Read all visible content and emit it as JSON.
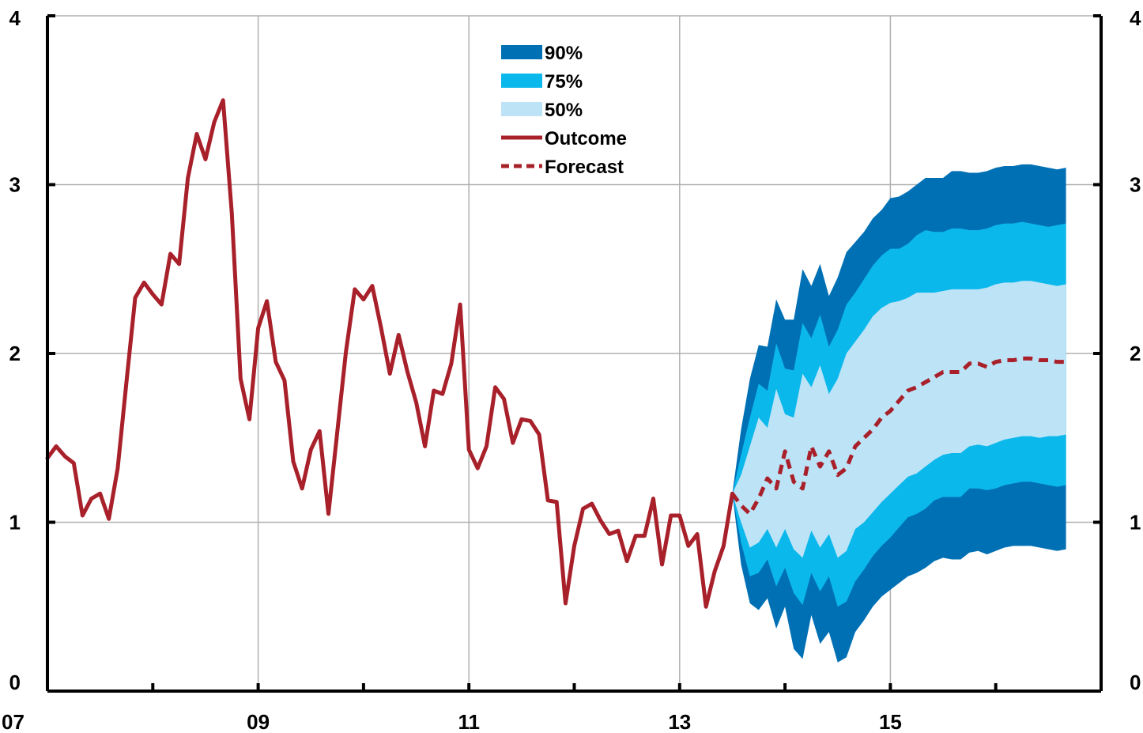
{
  "chart_data": {
    "type": "line",
    "title": "",
    "xlabel": "",
    "ylabel": "",
    "x_tick_labels": [
      "07",
      "09",
      "11",
      "13",
      "15"
    ],
    "x_tick_values": [
      2007,
      2009,
      2011,
      2013,
      2015
    ],
    "xlim": [
      2007,
      2017
    ],
    "ylim": [
      0,
      4
    ],
    "y_ticks": [
      0,
      1,
      2,
      3,
      4
    ],
    "y_tick_labels_left": [
      "0",
      "1",
      "2",
      "3",
      "4"
    ],
    "y_tick_labels_right": [
      "0",
      "1",
      "2",
      "3",
      "4"
    ],
    "grid": true,
    "legend_position": "top-center",
    "colors": {
      "band_90": "#0070b5",
      "band_75": "#0bb8ec",
      "band_50": "#bde3f7",
      "outcome": "#a8202a",
      "forecast": "#a8202a",
      "grid": "#b0b0b0"
    },
    "legend": [
      {
        "label": "90%",
        "kind": "band",
        "key": "band_90"
      },
      {
        "label": "75%",
        "kind": "band",
        "key": "band_75"
      },
      {
        "label": "50%",
        "kind": "band",
        "key": "band_50"
      },
      {
        "label": "Outcome",
        "kind": "line",
        "key": "outcome"
      },
      {
        "label": "Forecast",
        "kind": "dash",
        "key": "forecast"
      }
    ],
    "outcome": {
      "name": "Outcome",
      "x": [
        2007.0,
        2007.083,
        2007.167,
        2007.25,
        2007.333,
        2007.417,
        2007.5,
        2007.583,
        2007.667,
        2007.75,
        2007.833,
        2007.917,
        2008.0,
        2008.083,
        2008.167,
        2008.25,
        2008.333,
        2008.417,
        2008.5,
        2008.583,
        2008.667,
        2008.75,
        2008.833,
        2008.917,
        2009.0,
        2009.083,
        2009.167,
        2009.25,
        2009.333,
        2009.417,
        2009.5,
        2009.583,
        2009.667,
        2009.75,
        2009.833,
        2009.917,
        2010.0,
        2010.083,
        2010.167,
        2010.25,
        2010.333,
        2010.417,
        2010.5,
        2010.583,
        2010.667,
        2010.75,
        2010.833,
        2010.917,
        2011.0,
        2011.083,
        2011.167,
        2011.25,
        2011.333,
        2011.417,
        2011.5,
        2011.583,
        2011.667,
        2011.75,
        2011.833,
        2011.917,
        2012.0,
        2012.083,
        2012.167,
        2012.25,
        2012.333,
        2012.417,
        2012.5,
        2012.583,
        2012.667,
        2012.75,
        2012.833,
        2012.917,
        2013.0,
        2013.083,
        2013.167,
        2013.25,
        2013.333,
        2013.417,
        2013.5
      ],
      "y": [
        1.38,
        1.45,
        1.39,
        1.35,
        1.04,
        1.14,
        1.17,
        1.02,
        1.32,
        1.83,
        2.33,
        2.42,
        2.35,
        2.29,
        2.59,
        2.53,
        3.04,
        3.3,
        3.15,
        3.37,
        3.5,
        2.83,
        1.85,
        1.61,
        2.15,
        2.31,
        1.95,
        1.84,
        1.36,
        1.2,
        1.43,
        1.54,
        1.05,
        1.53,
        2.01,
        2.38,
        2.32,
        2.4,
        2.15,
        1.88,
        2.11,
        1.89,
        1.71,
        1.45,
        1.78,
        1.76,
        1.94,
        2.29,
        1.43,
        1.32,
        1.45,
        1.8,
        1.73,
        1.47,
        1.61,
        1.6,
        1.52,
        1.13,
        1.12,
        0.52,
        0.86,
        1.08,
        1.11,
        1.01,
        0.93,
        0.95,
        0.77,
        0.92,
        0.92,
        1.14,
        0.75,
        1.04,
        1.04,
        0.86,
        0.93,
        0.5,
        0.71,
        0.86,
        1.17
      ]
    },
    "forecast": {
      "name": "Forecast",
      "x": [
        2013.5,
        2013.583,
        2013.667,
        2013.75,
        2013.833,
        2013.917,
        2014.0,
        2014.083,
        2014.167,
        2014.25,
        2014.333,
        2014.417,
        2014.5,
        2014.583,
        2014.667,
        2014.75,
        2014.833,
        2014.917,
        2015.0,
        2015.083,
        2015.167,
        2015.25,
        2015.333,
        2015.417,
        2015.5,
        2015.583,
        2015.667,
        2015.75,
        2015.833,
        2015.917,
        2016.0,
        2016.083,
        2016.167,
        2016.25,
        2016.333,
        2016.417,
        2016.5,
        2016.583,
        2016.667
      ],
      "y": [
        1.17,
        1.1,
        1.05,
        1.14,
        1.26,
        1.2,
        1.42,
        1.24,
        1.2,
        1.45,
        1.33,
        1.42,
        1.28,
        1.32,
        1.45,
        1.5,
        1.55,
        1.62,
        1.66,
        1.72,
        1.78,
        1.8,
        1.83,
        1.86,
        1.89,
        1.89,
        1.89,
        1.94,
        1.94,
        1.92,
        1.95,
        1.96,
        1.96,
        1.97,
        1.97,
        1.96,
        1.96,
        1.95,
        1.95
      ]
    },
    "fan_bands": {
      "x": [
        2013.5,
        2013.583,
        2013.667,
        2013.75,
        2013.833,
        2013.917,
        2014.0,
        2014.083,
        2014.167,
        2014.25,
        2014.333,
        2014.417,
        2014.5,
        2014.583,
        2014.667,
        2014.75,
        2014.833,
        2014.917,
        2015.0,
        2015.083,
        2015.167,
        2015.25,
        2015.333,
        2015.417,
        2015.5,
        2015.583,
        2015.667,
        2015.75,
        2015.833,
        2015.917,
        2016.0,
        2016.083,
        2016.167,
        2016.25,
        2016.333,
        2016.417,
        2016.5,
        2016.583,
        2016.667
      ],
      "upper_90": [
        1.17,
        1.55,
        1.85,
        2.05,
        2.04,
        2.32,
        2.2,
        2.2,
        2.5,
        2.4,
        2.53,
        2.34,
        2.45,
        2.6,
        2.66,
        2.72,
        2.8,
        2.85,
        2.92,
        2.93,
        2.96,
        3.0,
        3.04,
        3.04,
        3.04,
        3.08,
        3.08,
        3.07,
        3.07,
        3.08,
        3.1,
        3.11,
        3.11,
        3.12,
        3.12,
        3.11,
        3.1,
        3.09,
        3.1
      ],
      "upper_75": [
        1.17,
        1.4,
        1.62,
        1.82,
        1.78,
        2.06,
        1.91,
        1.9,
        2.18,
        2.09,
        2.23,
        2.04,
        2.14,
        2.29,
        2.36,
        2.44,
        2.52,
        2.58,
        2.62,
        2.62,
        2.65,
        2.7,
        2.73,
        2.72,
        2.72,
        2.74,
        2.74,
        2.73,
        2.73,
        2.74,
        2.76,
        2.77,
        2.77,
        2.78,
        2.77,
        2.76,
        2.75,
        2.76,
        2.77
      ],
      "upper_50": [
        1.17,
        1.28,
        1.45,
        1.62,
        1.56,
        1.79,
        1.64,
        1.62,
        1.88,
        1.8,
        1.93,
        1.76,
        1.85,
        2.0,
        2.07,
        2.14,
        2.22,
        2.27,
        2.3,
        2.31,
        2.33,
        2.36,
        2.36,
        2.36,
        2.37,
        2.38,
        2.38,
        2.38,
        2.38,
        2.39,
        2.41,
        2.42,
        2.42,
        2.43,
        2.43,
        2.42,
        2.41,
        2.4,
        2.41
      ],
      "lower_50": [
        1.17,
        1.0,
        0.85,
        0.88,
        0.96,
        0.85,
        0.96,
        0.84,
        0.79,
        0.95,
        0.85,
        0.93,
        0.79,
        0.83,
        0.96,
        1.0,
        1.06,
        1.12,
        1.17,
        1.22,
        1.27,
        1.29,
        1.33,
        1.37,
        1.4,
        1.41,
        1.41,
        1.45,
        1.46,
        1.45,
        1.47,
        1.49,
        1.5,
        1.51,
        1.51,
        1.5,
        1.51,
        1.51,
        1.52
      ],
      "lower_75": [
        1.17,
        0.88,
        0.68,
        0.7,
        0.78,
        0.62,
        0.73,
        0.58,
        0.51,
        0.7,
        0.59,
        0.68,
        0.5,
        0.53,
        0.65,
        0.72,
        0.8,
        0.86,
        0.91,
        0.97,
        1.03,
        1.05,
        1.08,
        1.13,
        1.15,
        1.15,
        1.15,
        1.2,
        1.2,
        1.19,
        1.2,
        1.22,
        1.23,
        1.24,
        1.24,
        1.23,
        1.22,
        1.21,
        1.22
      ],
      "lower_90": [
        1.17,
        0.75,
        0.52,
        0.48,
        0.55,
        0.37,
        0.5,
        0.25,
        0.19,
        0.45,
        0.28,
        0.35,
        0.17,
        0.2,
        0.35,
        0.42,
        0.5,
        0.56,
        0.6,
        0.64,
        0.68,
        0.7,
        0.73,
        0.77,
        0.79,
        0.78,
        0.78,
        0.82,
        0.83,
        0.81,
        0.83,
        0.85,
        0.86,
        0.86,
        0.86,
        0.85,
        0.84,
        0.83,
        0.84
      ]
    }
  }
}
